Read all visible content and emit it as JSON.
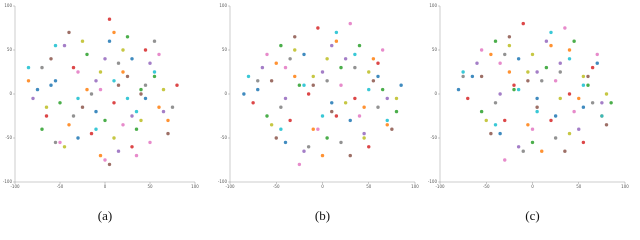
{
  "chart_data": [
    {
      "type": "scatter",
      "caption": "(a)",
      "xlim": [
        -100,
        100
      ],
      "ylim": [
        -100,
        100
      ],
      "xticks": [
        -100,
        -50,
        0,
        50,
        100
      ],
      "yticks": [
        -100,
        -50,
        0,
        50,
        100
      ],
      "series": [
        {
          "color": "#1f77b4",
          "x": [
            -60,
            -55,
            -10,
            30,
            -30,
            5,
            45,
            -75
          ],
          "y": [
            10,
            15,
            -20,
            40,
            -50,
            60,
            -5,
            5
          ]
        },
        {
          "color": "#ff7f0e",
          "x": [
            -85,
            -40,
            20,
            60,
            10,
            -20,
            70,
            -5
          ],
          "y": [
            15,
            -35,
            25,
            -15,
            70,
            5,
            -30,
            -70
          ]
        },
        {
          "color": "#2ca02c",
          "x": [
            -20,
            35,
            55,
            -50,
            0,
            25,
            -70,
            40
          ],
          "y": [
            45,
            -40,
            20,
            -10,
            -30,
            65,
            -40,
            5
          ]
        },
        {
          "color": "#d62728",
          "x": [
            10,
            -35,
            45,
            -65,
            30,
            -15,
            80,
            5
          ],
          "y": [
            -10,
            30,
            50,
            -25,
            -60,
            -45,
            10,
            85
          ]
        },
        {
          "color": "#9467bd",
          "x": [
            -45,
            15,
            65,
            -10,
            -80,
            50,
            0,
            30
          ],
          "y": [
            55,
            -65,
            -20,
            15,
            -5,
            35,
            40,
            -25
          ]
        },
        {
          "color": "#8c564b",
          "x": [
            25,
            -25,
            70,
            -60,
            5,
            40,
            -40,
            15
          ],
          "y": [
            20,
            -15,
            -45,
            40,
            -80,
            0,
            70,
            10
          ]
        },
        {
          "color": "#e377c2",
          "x": [
            0,
            -50,
            35,
            60,
            -30,
            20,
            -5,
            50
          ],
          "y": [
            -75,
            -55,
            -70,
            45,
            25,
            -35,
            5,
            -55
          ]
        },
        {
          "color": "#7f7f7f",
          "x": [
            -15,
            45,
            -70,
            15,
            -35,
            75,
            55,
            -55
          ],
          "y": [
            0,
            10,
            30,
            35,
            -25,
            -15,
            60,
            -55
          ]
        },
        {
          "color": "#bcbd22",
          "x": [
            40,
            -5,
            -45,
            65,
            20,
            -25,
            10,
            -65
          ],
          "y": [
            -30,
            25,
            -60,
            5,
            50,
            60,
            -50,
            -15
          ]
        },
        {
          "color": "#17becf",
          "x": [
            -30,
            55,
            10,
            -55,
            35,
            -10,
            25,
            -85
          ],
          "y": [
            -5,
            25,
            15,
            55,
            -20,
            -40,
            -5,
            30
          ]
        }
      ]
    },
    {
      "type": "scatter",
      "caption": "(b)",
      "xlim": [
        -100,
        100
      ],
      "ylim": [
        -100,
        100
      ],
      "xticks": [
        -100,
        -50,
        0,
        50,
        100
      ],
      "yticks": [
        -100,
        -50,
        0,
        50,
        100
      ],
      "series": [
        {
          "color": "#1f77b4",
          "x": [
            -70,
            -20,
            30,
            60,
            -40,
            10,
            85,
            -85
          ],
          "y": [
            5,
            45,
            -30,
            20,
            -55,
            -10,
            10,
            0
          ]
        },
        {
          "color": "#ff7f0e",
          "x": [
            -50,
            15,
            45,
            -10,
            70,
            -30,
            0,
            55
          ],
          "y": [
            35,
            60,
            -15,
            -40,
            -35,
            20,
            -70,
            40
          ]
        },
        {
          "color": "#2ca02c",
          "x": [
            20,
            -60,
            5,
            40,
            -25,
            65,
            -45,
            80
          ],
          "y": [
            30,
            -25,
            -50,
            55,
            10,
            5,
            55,
            -20
          ]
        },
        {
          "color": "#d62728",
          "x": [
            -5,
            35,
            -75,
            50,
            -35,
            15,
            60,
            -15
          ],
          "y": [
            75,
            -5,
            -10,
            -60,
            -30,
            -25,
            35,
            0
          ]
        },
        {
          "color": "#9467bd",
          "x": [
            -40,
            25,
            70,
            -65,
            0,
            45,
            -20,
            10
          ],
          "y": [
            -5,
            40,
            -5,
            30,
            25,
            -45,
            -65,
            55
          ]
        },
        {
          "color": "#8c564b",
          "x": [
            10,
            -30,
            55,
            -50,
            30,
            -10,
            75,
            -55
          ],
          "y": [
            -20,
            65,
            15,
            -50,
            -70,
            10,
            -40,
            15
          ]
        },
        {
          "color": "#e377c2",
          "x": [
            -25,
            40,
            -60,
            20,
            -5,
            65,
            -40,
            30
          ],
          "y": [
            -80,
            -25,
            45,
            10,
            -40,
            50,
            30,
            80
          ]
        },
        {
          "color": "#7f7f7f",
          "x": [
            5,
            -45,
            35,
            -15,
            60,
            -70,
            20,
            -35
          ],
          "y": [
            15,
            -15,
            30,
            -60,
            -15,
            15,
            -55,
            40
          ]
        },
        {
          "color": "#bcbd22",
          "x": [
            45,
            -10,
            -55,
            25,
            -30,
            80,
            5,
            50
          ],
          "y": [
            -50,
            20,
            -35,
            -10,
            50,
            -5,
            40,
            25
          ]
        },
        {
          "color": "#17becf",
          "x": [
            -20,
            50,
            15,
            -80,
            35,
            -45,
            0,
            70
          ],
          "y": [
            10,
            5,
            70,
            20,
            45,
            -40,
            -25,
            -30
          ]
        }
      ]
    },
    {
      "type": "scatter",
      "caption": "(c)",
      "xlim": [
        -100,
        100
      ],
      "ylim": [
        -100,
        100
      ],
      "xticks": [
        -100,
        -50,
        0,
        50,
        100
      ],
      "yticks": [
        -100,
        -50,
        0,
        50,
        100
      ],
      "series": [
        {
          "color": "#1f77b4",
          "x": [
            -65,
            -15,
            25,
            70,
            -35,
            5,
            55,
            -80
          ],
          "y": [
            20,
            40,
            -25,
            35,
            -45,
            -5,
            -15,
            5
          ]
        },
        {
          "color": "#ff7f0e",
          "x": [
            -45,
            20,
            50,
            -5,
            75,
            -25,
            10,
            40
          ],
          "y": [
            45,
            55,
            -5,
            -35,
            -25,
            25,
            -65,
            50
          ]
        },
        {
          "color": "#2ca02c",
          "x": [
            15,
            -55,
            0,
            45,
            -20,
            60,
            -40,
            85
          ],
          "y": [
            30,
            -20,
            -55,
            60,
            5,
            10,
            60,
            -10
          ]
        },
        {
          "color": "#d62728",
          "x": [
            -10,
            40,
            -70,
            55,
            -30,
            20,
            65,
            -20
          ],
          "y": [
            80,
            0,
            -5,
            -55,
            -30,
            -30,
            30,
            10
          ]
        },
        {
          "color": "#9467bd",
          "x": [
            -35,
            30,
            75,
            -60,
            5,
            50,
            -15,
            15
          ],
          "y": [
            0,
            35,
            -10,
            35,
            25,
            -40,
            -60,
            60
          ]
        },
        {
          "color": "#8c564b",
          "x": [
            5,
            -25,
            60,
            -45,
            35,
            -5,
            80,
            -55
          ],
          "y": [
            -15,
            65,
            20,
            -45,
            -65,
            15,
            -35,
            20
          ]
        },
        {
          "color": "#e377c2",
          "x": [
            -30,
            45,
            -55,
            25,
            0,
            70,
            -35,
            35
          ],
          "y": [
            -75,
            -20,
            50,
            15,
            -40,
            45,
            35,
            75
          ]
        },
        {
          "color": "#7f7f7f",
          "x": [
            10,
            -40,
            30,
            -10,
            65,
            -75,
            25,
            -30
          ],
          "y": [
            15,
            -10,
            25,
            -65,
            -10,
            20,
            -50,
            45
          ]
        },
        {
          "color": "#bcbd22",
          "x": [
            40,
            -5,
            -50,
            30,
            -25,
            80,
            0,
            55
          ],
          "y": [
            -45,
            25,
            -30,
            -5,
            55,
            0,
            45,
            20
          ]
        },
        {
          "color": "#17becf",
          "x": [
            -15,
            55,
            20,
            -75,
            40,
            -40,
            5,
            75
          ],
          "y": [
            5,
            10,
            70,
            25,
            40,
            -35,
            -20,
            -25
          ]
        }
      ]
    }
  ]
}
